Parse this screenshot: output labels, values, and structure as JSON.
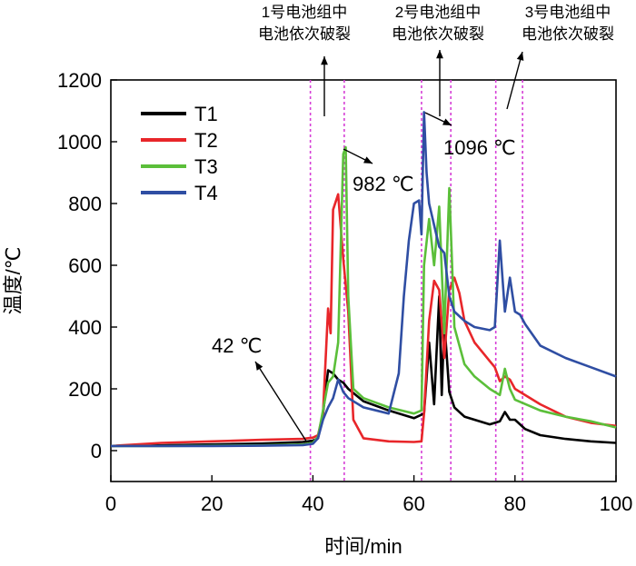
{
  "chart_data": {
    "type": "line",
    "xlabel": "时间/min",
    "ylabel": "温度/℃",
    "xlim": [
      0,
      100
    ],
    "ylim": [
      -100,
      1200
    ],
    "xticks": [
      0,
      20,
      40,
      60,
      80,
      100
    ],
    "yticks": [
      0,
      200,
      400,
      600,
      800,
      1000,
      1200
    ],
    "grid": false,
    "legend_position": "top-left",
    "event_lines": [
      39.5,
      46.2,
      61.5,
      67.3,
      76.2,
      81.5
    ],
    "event_annotations": [
      {
        "line1": "1号电池组中",
        "line2": "电池依次破裂"
      },
      {
        "line1": "2号电池组中",
        "line2": "电池依次破裂"
      },
      {
        "line1": "3号电池组中",
        "line2": "电池依次破裂"
      }
    ],
    "value_annotations": [
      {
        "text": "42 ℃",
        "x": 39.5,
        "y": 42
      },
      {
        "text": "982 ℃",
        "x": 46.2,
        "y": 982
      },
      {
        "text": "1096 ℃",
        "x": 62.4,
        "y": 1096
      }
    ],
    "series": [
      {
        "name": "T1",
        "color": "#000000",
        "points": [
          [
            0,
            15
          ],
          [
            10,
            17
          ],
          [
            20,
            20
          ],
          [
            30,
            23
          ],
          [
            38,
            28
          ],
          [
            40,
            32
          ],
          [
            41,
            40
          ],
          [
            42,
            120
          ],
          [
            43,
            260
          ],
          [
            44,
            250
          ],
          [
            45,
            230
          ],
          [
            46,
            220
          ],
          [
            47,
            200
          ],
          [
            50,
            160
          ],
          [
            55,
            130
          ],
          [
            60,
            105
          ],
          [
            62,
            120
          ],
          [
            63,
            350
          ],
          [
            64,
            150
          ],
          [
            65,
            500
          ],
          [
            65.5,
            180
          ],
          [
            66,
            420
          ],
          [
            67,
            190
          ],
          [
            68,
            140
          ],
          [
            70,
            110
          ],
          [
            75,
            85
          ],
          [
            77,
            95
          ],
          [
            78,
            125
          ],
          [
            79,
            100
          ],
          [
            80,
            100
          ],
          [
            82,
            70
          ],
          [
            85,
            50
          ],
          [
            90,
            38
          ],
          [
            95,
            30
          ],
          [
            100,
            25
          ]
        ]
      },
      {
        "name": "T2",
        "color": "#e8262a",
        "points": [
          [
            0,
            15
          ],
          [
            10,
            25
          ],
          [
            20,
            30
          ],
          [
            30,
            35
          ],
          [
            38,
            38
          ],
          [
            40,
            42
          ],
          [
            41,
            50
          ],
          [
            42,
            120
          ],
          [
            43,
            460
          ],
          [
            43.5,
            380
          ],
          [
            44,
            780
          ],
          [
            45,
            830
          ],
          [
            46,
            620
          ],
          [
            47,
            450
          ],
          [
            48,
            100
          ],
          [
            50,
            40
          ],
          [
            55,
            30
          ],
          [
            60,
            28
          ],
          [
            61.5,
            30
          ],
          [
            62,
            120
          ],
          [
            63,
            420
          ],
          [
            64,
            550
          ],
          [
            65,
            520
          ],
          [
            66,
            300
          ],
          [
            67,
            520
          ],
          [
            68,
            560
          ],
          [
            69,
            510
          ],
          [
            70,
            420
          ],
          [
            72,
            350
          ],
          [
            75,
            290
          ],
          [
            76,
            270
          ],
          [
            77,
            225
          ],
          [
            78,
            240
          ],
          [
            79,
            230
          ],
          [
            80,
            200
          ],
          [
            85,
            150
          ],
          [
            90,
            110
          ],
          [
            95,
            90
          ],
          [
            100,
            80
          ]
        ]
      },
      {
        "name": "T3",
        "color": "#5bbf3a",
        "points": [
          [
            0,
            15
          ],
          [
            10,
            15
          ],
          [
            20,
            16
          ],
          [
            30,
            17
          ],
          [
            38,
            20
          ],
          [
            40,
            25
          ],
          [
            41,
            45
          ],
          [
            42,
            130
          ],
          [
            43,
            220
          ],
          [
            44,
            240
          ],
          [
            45,
            350
          ],
          [
            46,
            960
          ],
          [
            46.5,
            982
          ],
          [
            47,
            500
          ],
          [
            48,
            200
          ],
          [
            50,
            170
          ],
          [
            55,
            140
          ],
          [
            60,
            120
          ],
          [
            61.5,
            130
          ],
          [
            62,
            600
          ],
          [
            63,
            750
          ],
          [
            64,
            600
          ],
          [
            65,
            790
          ],
          [
            66,
            380
          ],
          [
            67,
            850
          ],
          [
            68,
            400
          ],
          [
            70,
            280
          ],
          [
            72,
            240
          ],
          [
            75,
            200
          ],
          [
            77,
            180
          ],
          [
            78,
            265
          ],
          [
            79,
            200
          ],
          [
            80,
            165
          ],
          [
            85,
            130
          ],
          [
            90,
            110
          ],
          [
            95,
            95
          ],
          [
            100,
            75
          ]
        ]
      },
      {
        "name": "T4",
        "color": "#2f4ea3",
        "points": [
          [
            0,
            15
          ],
          [
            10,
            15
          ],
          [
            20,
            15
          ],
          [
            30,
            16
          ],
          [
            38,
            18
          ],
          [
            40,
            22
          ],
          [
            41,
            40
          ],
          [
            42,
            100
          ],
          [
            43,
            140
          ],
          [
            44,
            170
          ],
          [
            45,
            230
          ],
          [
            46,
            190
          ],
          [
            47,
            170
          ],
          [
            50,
            140
          ],
          [
            55,
            120
          ],
          [
            57,
            250
          ],
          [
            58,
            500
          ],
          [
            59,
            680
          ],
          [
            60,
            800
          ],
          [
            61,
            810
          ],
          [
            61.5,
            700
          ],
          [
            62,
            1096
          ],
          [
            62.5,
            900
          ],
          [
            63,
            800
          ],
          [
            64,
            730
          ],
          [
            65,
            660
          ],
          [
            66,
            640
          ],
          [
            67,
            500
          ],
          [
            68,
            450
          ],
          [
            70,
            420
          ],
          [
            72,
            400
          ],
          [
            75,
            390
          ],
          [
            76,
            400
          ],
          [
            77,
            680
          ],
          [
            78,
            450
          ],
          [
            79,
            560
          ],
          [
            80,
            450
          ],
          [
            81,
            440
          ],
          [
            82,
            410
          ],
          [
            85,
            340
          ],
          [
            90,
            300
          ],
          [
            95,
            270
          ],
          [
            100,
            240
          ]
        ]
      }
    ]
  }
}
